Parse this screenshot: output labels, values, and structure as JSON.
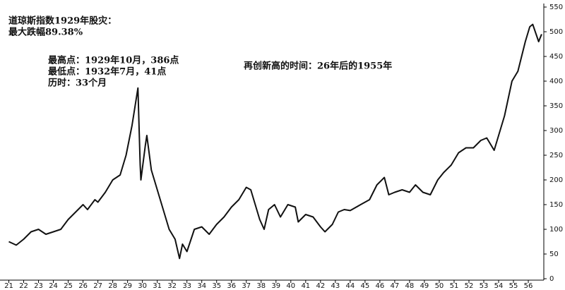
{
  "chart_data": {
    "type": "line",
    "title": "道琼斯指数1929年股灾：",
    "subtitle": "最大跌幅89.38%",
    "annotations": [
      "最高点：1929年10月，386点",
      "最低点：1932年7月，41点",
      "历时：33个月",
      "再创新高的时间：26年后的1955年"
    ],
    "color": "#111111",
    "x": [
      21.0,
      21.5,
      22.0,
      22.5,
      23.0,
      23.5,
      24.0,
      24.5,
      25.0,
      25.5,
      26.0,
      26.3,
      26.8,
      27.0,
      27.5,
      28.0,
      28.5,
      28.9,
      29.3,
      29.7,
      29.85,
      29.9,
      30.2,
      30.3,
      30.6,
      31.0,
      31.4,
      31.8,
      32.2,
      32.5,
      32.7,
      33.0,
      33.5,
      34.0,
      34.5,
      35.0,
      35.5,
      36.0,
      36.5,
      37.0,
      37.3,
      37.6,
      37.9,
      38.2,
      38.5,
      38.9,
      39.3,
      39.8,
      40.3,
      40.5,
      41.0,
      41.5,
      42.0,
      42.3,
      42.8,
      43.2,
      43.6,
      44.0,
      44.7,
      45.3,
      45.8,
      46.3,
      46.6,
      47.0,
      47.5,
      48.0,
      48.4,
      48.9,
      49.4,
      49.9,
      50.3,
      50.8,
      51.3,
      51.8,
      52.3,
      52.8,
      53.2,
      53.7,
      54.0,
      54.4,
      54.9,
      55.3,
      55.8,
      56.1,
      56.3,
      56.7,
      56.9
    ],
    "values": [
      75,
      68,
      80,
      95,
      100,
      90,
      95,
      100,
      120,
      135,
      150,
      140,
      160,
      155,
      175,
      200,
      210,
      250,
      310,
      386,
      230,
      200,
      270,
      290,
      220,
      180,
      140,
      100,
      80,
      41,
      70,
      55,
      100,
      105,
      90,
      110,
      125,
      145,
      160,
      185,
      180,
      150,
      120,
      100,
      140,
      150,
      125,
      150,
      145,
      115,
      130,
      125,
      105,
      95,
      110,
      135,
      140,
      138,
      150,
      160,
      190,
      205,
      170,
      175,
      180,
      175,
      190,
      175,
      170,
      200,
      215,
      230,
      255,
      265,
      265,
      280,
      285,
      260,
      290,
      330,
      400,
      420,
      480,
      510,
      515,
      480,
      495
    ],
    "xlim": [
      20.5,
      56.95
    ],
    "xticks": [
      21,
      22,
      23,
      24,
      25,
      26,
      27,
      28,
      29,
      30,
      31,
      32,
      33,
      34,
      35,
      36,
      37,
      38,
      39,
      40,
      41,
      42,
      43,
      44,
      45,
      46,
      47,
      48,
      49,
      50,
      51,
      52,
      53,
      54,
      55,
      56
    ],
    "ylim": [
      0,
      550
    ],
    "yticks": [
      0,
      50,
      100,
      150,
      200,
      250,
      300,
      350,
      400,
      450,
      500,
      550
    ]
  }
}
